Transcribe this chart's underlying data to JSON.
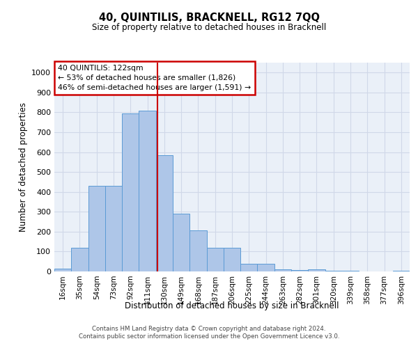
{
  "title": "40, QUINTILIS, BRACKNELL, RG12 7QQ",
  "subtitle": "Size of property relative to detached houses in Bracknell",
  "xlabel": "Distribution of detached houses by size in Bracknell",
  "ylabel": "Number of detached properties",
  "categories": [
    "16sqm",
    "35sqm",
    "54sqm",
    "73sqm",
    "92sqm",
    "111sqm",
    "130sqm",
    "149sqm",
    "168sqm",
    "187sqm",
    "206sqm",
    "225sqm",
    "244sqm",
    "263sqm",
    "282sqm",
    "301sqm",
    "320sqm",
    "339sqm",
    "358sqm",
    "377sqm",
    "396sqm"
  ],
  "values": [
    15,
    120,
    430,
    430,
    795,
    808,
    585,
    290,
    207,
    120,
    120,
    40,
    40,
    10,
    8,
    12,
    5,
    3,
    0,
    0,
    3
  ],
  "bar_color": "#aec6e8",
  "bar_edge_color": "#5b9bd5",
  "grid_color": "#d0d8e8",
  "background_color": "#eaf0f8",
  "annotation_text": "40 QUINTILIS: 122sqm\n← 53% of detached houses are smaller (1,826)\n46% of semi-detached houses are larger (1,591) →",
  "annotation_box_color": "#ffffff",
  "annotation_box_edge_color": "#cc0000",
  "bin_edges": [
    16,
    35,
    54,
    73,
    92,
    111,
    130,
    149,
    168,
    187,
    206,
    225,
    244,
    263,
    282,
    301,
    320,
    339,
    358,
    377,
    396
  ],
  "bin_width": 19,
  "property_bin_index": 5,
  "ylim": [
    0,
    1050
  ],
  "yticks": [
    0,
    100,
    200,
    300,
    400,
    500,
    600,
    700,
    800,
    900,
    1000
  ],
  "footer_line1": "Contains HM Land Registry data © Crown copyright and database right 2024.",
  "footer_line2": "Contains public sector information licensed under the Open Government Licence v3.0."
}
